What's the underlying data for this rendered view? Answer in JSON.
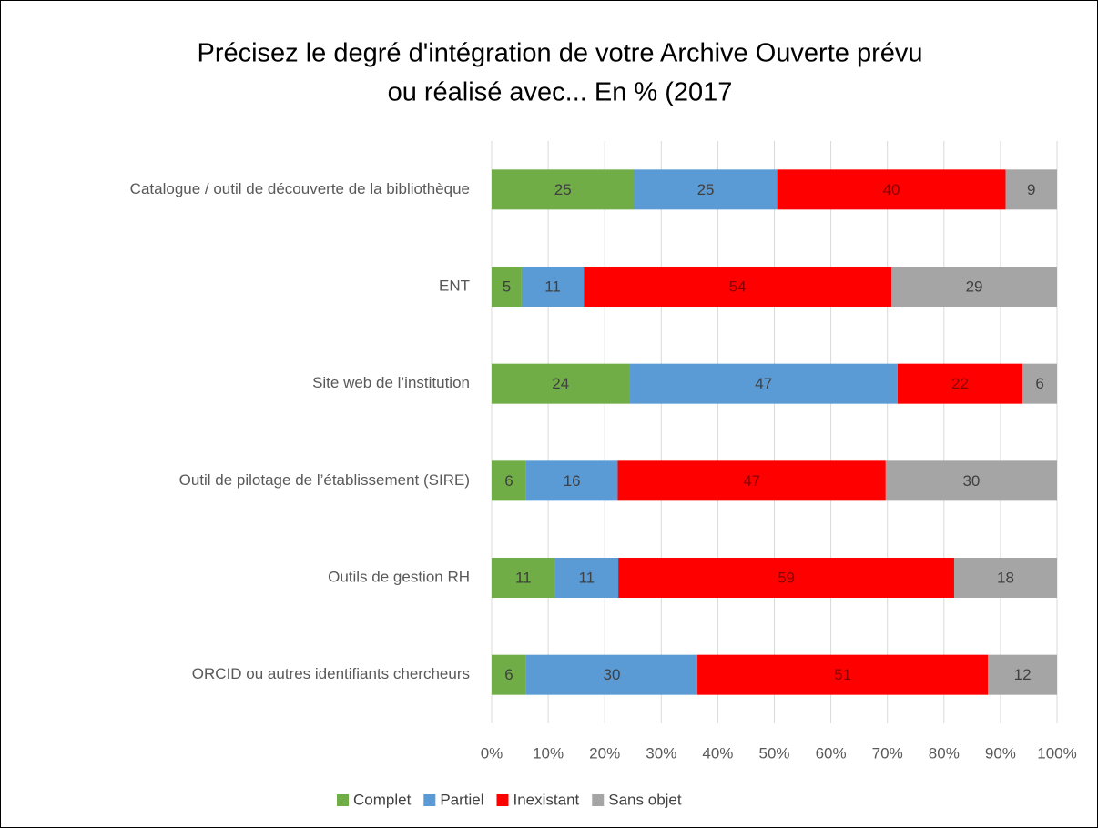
{
  "chart_data": {
    "type": "bar",
    "orientation": "horizontal",
    "stacked": true,
    "title": [
      "Précisez le degré d'intégration de votre Archive Ouverte prévu",
      "ou réalisé avec... En % (2017"
    ],
    "categories": [
      "Catalogue / outil de découverte de la bibliothèque",
      "ENT",
      "Site web de l’institution",
      "Outil de pilotage de l’établissement (SIRE)",
      "Outils de gestion RH",
      "ORCID ou autres identifiants chercheurs"
    ],
    "series": [
      {
        "name": "Complet",
        "color": "#70ad47",
        "values": [
          25.2,
          5.3,
          24.4,
          6.1,
          11.2,
          6.1
        ],
        "value_labels": [
          "25",
          "5",
          "24",
          "6",
          "11",
          "6"
        ]
      },
      {
        "name": "Partiel",
        "color": "#5b9bd5",
        "values": [
          25.3,
          11.0,
          47.4,
          16.2,
          11.2,
          30.3
        ],
        "value_labels": [
          "25",
          "11",
          "47",
          "16",
          "11",
          "30"
        ]
      },
      {
        "name": "Inexistant",
        "color": "#ff0000",
        "values": [
          40.4,
          54.4,
          22.1,
          47.4,
          59.4,
          51.4
        ],
        "value_labels": [
          "40",
          "54",
          "22",
          "47",
          "59",
          "51"
        ]
      },
      {
        "name": "Sans objet",
        "color": "#a5a5a5",
        "values": [
          9.1,
          29.3,
          6.1,
          30.3,
          18.2,
          12.2
        ],
        "value_labels": [
          "9",
          "29",
          "6",
          "30",
          "18",
          "12"
        ]
      }
    ],
    "xlim": [
      0,
      100
    ],
    "xticks": [
      {
        "value": 0,
        "label": "0%"
      },
      {
        "value": 10,
        "label": "10%"
      },
      {
        "value": 20,
        "label": "20%"
      },
      {
        "value": 30,
        "label": "30%"
      },
      {
        "value": 40,
        "label": "40%"
      },
      {
        "value": 50,
        "label": "50%"
      },
      {
        "value": 60,
        "label": "60%"
      },
      {
        "value": 70,
        "label": "70%"
      },
      {
        "value": 80,
        "label": "80%"
      },
      {
        "value": 90,
        "label": "90%"
      },
      {
        "value": 100,
        "label": "100%"
      }
    ],
    "grid": true,
    "legend": "bottom"
  }
}
